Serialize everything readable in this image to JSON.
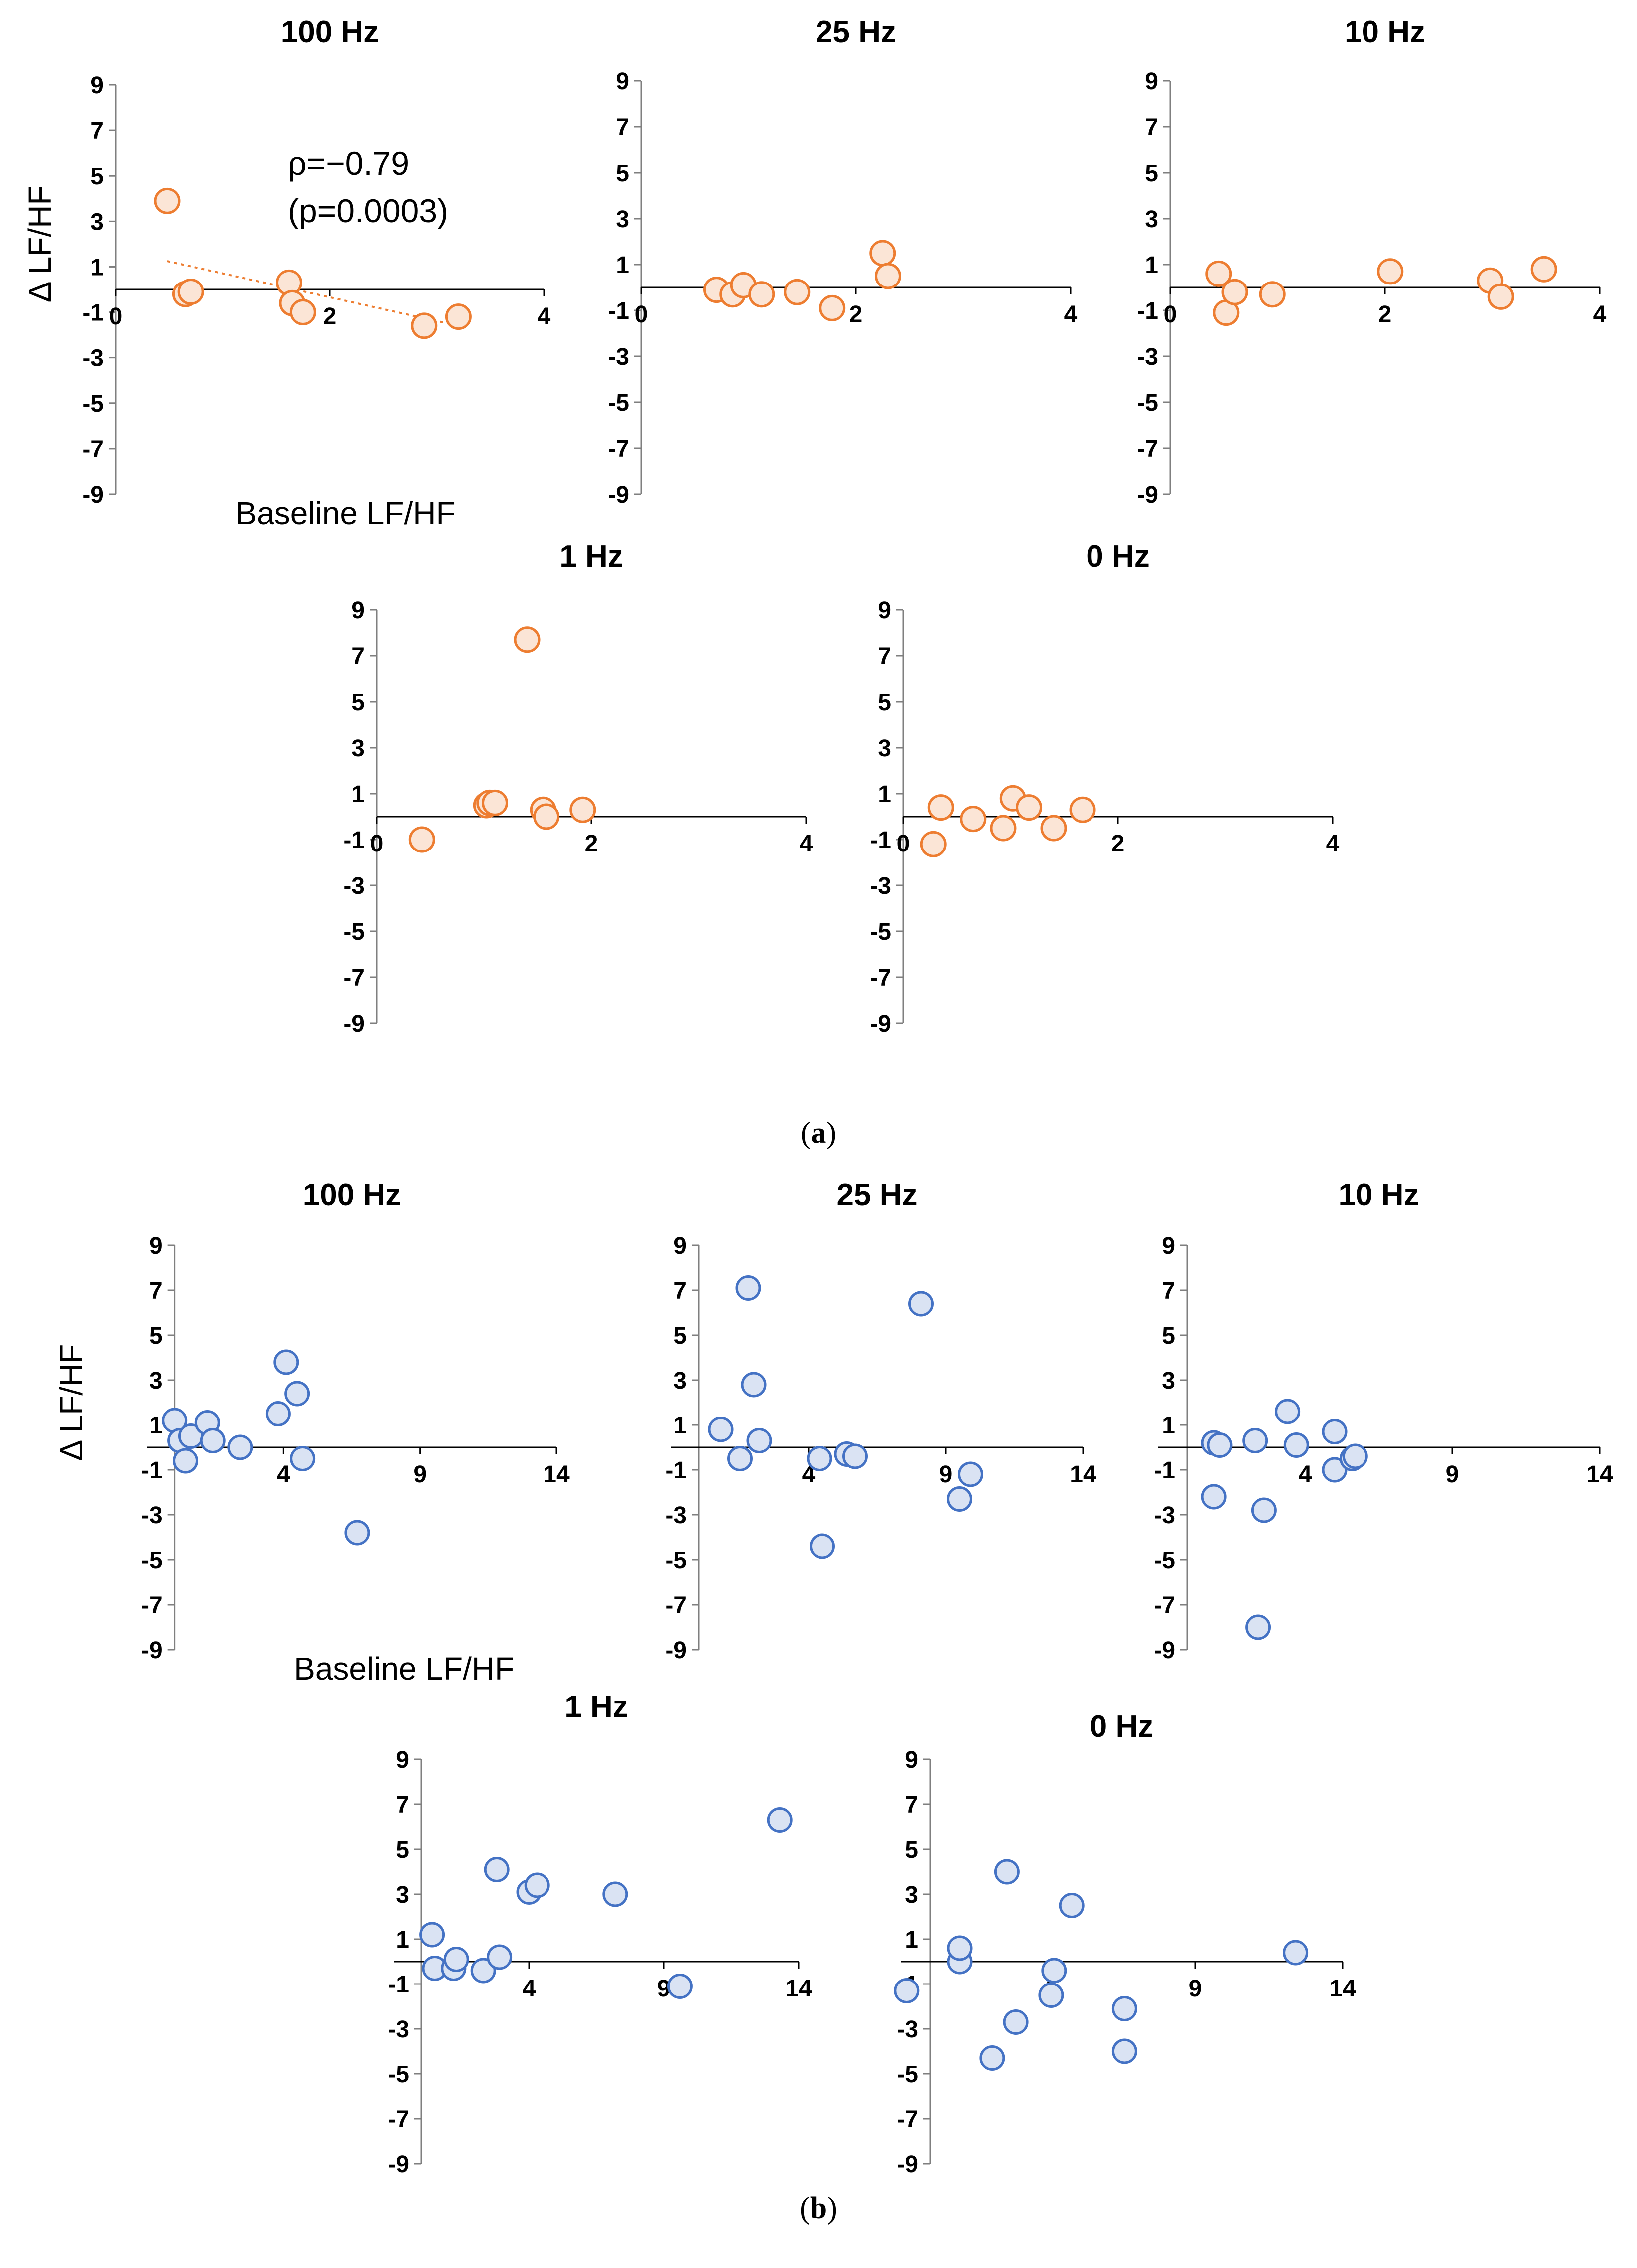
{
  "captions": [
    "a",
    "b"
  ],
  "chart_data": [
    {
      "type": "scatter",
      "group": "a",
      "title": "100 Hz",
      "xlabel": "Baseline LF/HF",
      "ylabel": "Δ LF/HF",
      "xlim": [
        0,
        4
      ],
      "ylim": [
        -9,
        9
      ],
      "xticks": [
        "0",
        "2",
        "4"
      ],
      "yticks": [
        "9",
        "7",
        "5",
        "3",
        "1",
        "-1",
        "-3",
        "-5",
        "-7",
        "-9"
      ],
      "x": [
        0.48,
        0.65,
        0.7,
        1.62,
        1.65,
        1.75,
        2.88,
        3.2
      ],
      "y": [
        3.9,
        -0.2,
        -0.1,
        0.3,
        -0.6,
        -1.0,
        -1.6,
        -1.2
      ],
      "trendline": {
        "x": [
          0.48,
          3.2
        ],
        "y": [
          1.25,
          -1.6
        ]
      },
      "annotation": [
        "ρ=−0.79",
        "(p=0.0003)"
      ],
      "color": "#ED7D31",
      "fill": "#FBE5D6"
    },
    {
      "type": "scatter",
      "group": "a",
      "title": "25 Hz",
      "xlim": [
        0,
        4
      ],
      "ylim": [
        -9,
        9
      ],
      "xticks": [
        "0",
        "2",
        "4"
      ],
      "yticks": [
        "9",
        "7",
        "5",
        "3",
        "1",
        "-1",
        "-3",
        "-5",
        "-7",
        "-9"
      ],
      "x": [
        0.7,
        0.85,
        0.95,
        1.12,
        1.45,
        1.78,
        2.25,
        2.3
      ],
      "y": [
        -0.1,
        -0.3,
        0.1,
        -0.3,
        -0.2,
        -0.9,
        1.5,
        0.5
      ],
      "color": "#ED7D31",
      "fill": "#FBE5D6"
    },
    {
      "type": "scatter",
      "group": "a",
      "title": "10 Hz",
      "xlim": [
        0,
        4
      ],
      "ylim": [
        -9,
        9
      ],
      "xticks": [
        "0",
        "2",
        "4"
      ],
      "yticks": [
        "9",
        "7",
        "5",
        "3",
        "1",
        "-1",
        "-3",
        "-5",
        "-7",
        "-9"
      ],
      "x": [
        0.45,
        0.52,
        0.6,
        0.95,
        2.05,
        2.98,
        3.08,
        3.48
      ],
      "y": [
        0.6,
        -1.1,
        -0.2,
        -0.3,
        0.7,
        0.3,
        -0.4,
        0.8
      ],
      "color": "#ED7D31",
      "fill": "#FBE5D6"
    },
    {
      "type": "scatter",
      "group": "a",
      "title": "1 Hz",
      "xlim": [
        0,
        4
      ],
      "ylim": [
        -9,
        9
      ],
      "xticks": [
        "0",
        "2",
        "4"
      ],
      "yticks": [
        "9",
        "7",
        "5",
        "3",
        "1",
        "-1",
        "-3",
        "-5",
        "-7",
        "-9"
      ],
      "x": [
        0.42,
        1.02,
        1.05,
        1.1,
        1.4,
        1.55,
        1.58,
        1.92
      ],
      "y": [
        -1.0,
        0.5,
        0.6,
        0.6,
        7.7,
        0.3,
        0.0,
        0.3
      ],
      "color": "#ED7D31",
      "fill": "#FBE5D6"
    },
    {
      "type": "scatter",
      "group": "a",
      "title": "0 Hz",
      "xlim": [
        0,
        4
      ],
      "ylim": [
        -9,
        9
      ],
      "xticks": [
        "0",
        "2",
        "4"
      ],
      "yticks": [
        "9",
        "7",
        "5",
        "3",
        "1",
        "-1",
        "-3",
        "-5",
        "-7",
        "-9"
      ],
      "x": [
        0.28,
        0.35,
        0.65,
        0.93,
        1.02,
        1.17,
        1.4,
        1.67
      ],
      "y": [
        -1.2,
        0.4,
        -0.1,
        -0.5,
        0.8,
        0.4,
        -0.5,
        0.3
      ],
      "color": "#ED7D31",
      "fill": "#FBE5D6"
    },
    {
      "type": "scatter",
      "group": "b",
      "title": "100 Hz",
      "xlabel": "Baseline LF/HF",
      "ylabel": "Δ LF/HF",
      "xlim": [
        -1,
        14
      ],
      "ylim": [
        -9,
        9
      ],
      "xticks": [
        "4",
        "9",
        "14"
      ],
      "yticks": [
        "9",
        "7",
        "5",
        "3",
        "1",
        "-1",
        "-3",
        "-5",
        "-7",
        "-9"
      ],
      "x": [
        0.0,
        0.2,
        0.4,
        0.6,
        1.2,
        1.4,
        2.4,
        3.8,
        4.1,
        4.5,
        4.7,
        6.7
      ],
      "y": [
        1.2,
        0.3,
        -0.6,
        0.5,
        1.1,
        0.3,
        0.0,
        1.5,
        3.8,
        2.4,
        -0.5,
        -3.8
      ],
      "color": "#4472C4",
      "fill": "#DAE3F3"
    },
    {
      "type": "scatter",
      "group": "b",
      "title": "25 Hz",
      "xlim": [
        -1,
        14
      ],
      "ylim": [
        -9,
        9
      ],
      "xticks": [
        "4",
        "9",
        "14"
      ],
      "yticks": [
        "9",
        "7",
        "5",
        "3",
        "1",
        "-1",
        "-3",
        "-5",
        "-7",
        "-9"
      ],
      "x": [
        0.8,
        1.5,
        1.8,
        2.0,
        2.2,
        4.4,
        4.5,
        5.4,
        5.7,
        8.1,
        9.5,
        9.9
      ],
      "y": [
        0.8,
        -0.5,
        7.1,
        2.8,
        0.3,
        -0.5,
        -4.4,
        -0.3,
        -0.4,
        6.4,
        -2.3,
        -1.2
      ],
      "color": "#4472C4",
      "fill": "#DAE3F3"
    },
    {
      "type": "scatter",
      "group": "b",
      "title": "10 Hz",
      "xlim": [
        -1,
        14
      ],
      "ylim": [
        -9,
        9
      ],
      "xticks": [
        "4",
        "9",
        "14"
      ],
      "yticks": [
        "9",
        "7",
        "5",
        "3",
        "1",
        "-1",
        "-3",
        "-5",
        "-7",
        "-9"
      ],
      "x": [
        0.9,
        0.9,
        1.1,
        2.3,
        2.6,
        3.4,
        3.7,
        5.0,
        5.0,
        5.6,
        5.7,
        2.4
      ],
      "y": [
        0.2,
        -2.2,
        0.1,
        0.3,
        -2.8,
        1.6,
        0.1,
        -1.0,
        0.7,
        -0.5,
        -0.4,
        -8.0
      ],
      "color": "#4472C4",
      "fill": "#DAE3F3"
    },
    {
      "type": "scatter",
      "group": "b",
      "title": "1 Hz",
      "xlim": [
        -1,
        14
      ],
      "ylim": [
        -9,
        9
      ],
      "xticks": [
        "4",
        "9",
        "14"
      ],
      "yticks": [
        "9",
        "7",
        "5",
        "3",
        "1",
        "-1",
        "-3",
        "-5",
        "-7",
        "-9"
      ],
      "x": [
        0.4,
        0.5,
        1.2,
        1.3,
        2.3,
        2.8,
        2.9,
        4.0,
        4.3,
        7.2,
        9.6,
        13.3
      ],
      "y": [
        1.2,
        -0.3,
        -0.3,
        0.1,
        -0.4,
        4.1,
        0.2,
        3.1,
        3.4,
        3.0,
        -1.1,
        6.3
      ],
      "color": "#4472C4",
      "fill": "#DAE3F3"
    },
    {
      "type": "scatter",
      "group": "b",
      "title": "0 Hz",
      "xlim": [
        -1,
        14
      ],
      "ylim": [
        -9,
        9
      ],
      "xticks": [
        "4",
        "9",
        "14"
      ],
      "yticks": [
        "9",
        "7",
        "5",
        "3",
        "1",
        "-1",
        "-3",
        "-5",
        "-7",
        "-9"
      ],
      "x": [
        -0.8,
        1.0,
        1.0,
        2.1,
        2.6,
        2.9,
        4.1,
        4.2,
        4.8,
        6.6,
        6.6,
        12.4
      ],
      "y": [
        -1.3,
        0.0,
        0.6,
        -4.3,
        4.0,
        -2.7,
        -1.5,
        -0.4,
        2.5,
        -2.1,
        -4.0,
        0.4
      ],
      "color": "#4472C4",
      "fill": "#DAE3F3"
    }
  ]
}
